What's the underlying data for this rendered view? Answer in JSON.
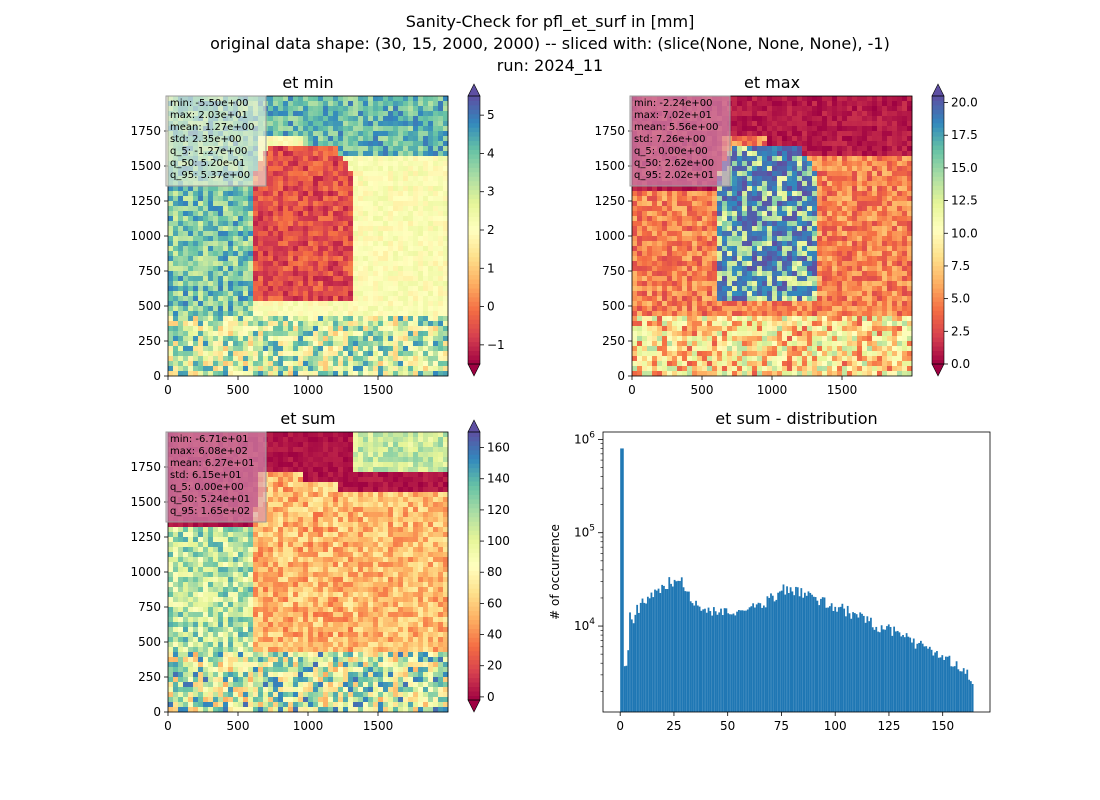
{
  "figure": {
    "suptitle_lines": [
      "Sanity-Check for pfl_et_surf in [mm]",
      "original data shape: (30, 15, 2000, 2000) -- sliced with: (slice(None, None, None), -1)",
      "run: 2024_11"
    ]
  },
  "colormap": "Spectral",
  "colormap_stops": [
    "#9e0142",
    "#d53e4f",
    "#f46d43",
    "#fdae61",
    "#fee08b",
    "#ffffbf",
    "#e6f598",
    "#abdda4",
    "#66c2a5",
    "#3288bd",
    "#5e4fa2"
  ],
  "chart_data": [
    {
      "type": "heatmap",
      "title": "et min",
      "xlim": [
        0,
        2000
      ],
      "ylim": [
        0,
        2000
      ],
      "xticks": [
        "0",
        "500",
        "1000",
        "1500"
      ],
      "yticks": [
        "0",
        "250",
        "500",
        "750",
        "1000",
        "1250",
        "1500",
        "1750"
      ],
      "colorbar": {
        "range": [
          -1.5,
          5.5
        ],
        "ticks": [
          "−1",
          "0",
          "1",
          "2",
          "3",
          "4",
          "5"
        ],
        "extend": "both"
      },
      "stats": [
        "min: -5.50e+00",
        "max: 2.03e+01",
        "mean: 1.27e+00",
        "std: 2.35e+00",
        "q_5: -1.27e+00",
        "q_50: 5.20e-01",
        "q_95: 5.37e+00"
      ],
      "stats_box_color": "#f5f5dc"
    },
    {
      "type": "heatmap",
      "title": "et max",
      "xlim": [
        0,
        2000
      ],
      "ylim": [
        0,
        2000
      ],
      "xticks": [
        "0",
        "500",
        "1000",
        "1500"
      ],
      "yticks": [
        "0",
        "250",
        "500",
        "750",
        "1000",
        "1250",
        "1500",
        "1750"
      ],
      "colorbar": {
        "range": [
          0,
          20.5
        ],
        "ticks": [
          "0.0",
          "2.5",
          "5.0",
          "7.5",
          "10.0",
          "12.5",
          "15.0",
          "17.5",
          "20.0"
        ],
        "extend": "both"
      },
      "stats": [
        "min: -2.24e+00",
        "max: 7.02e+01",
        "mean: 5.56e+00",
        "std: 7.26e+00",
        "q_5: 0.00e+00",
        "q_50: 2.62e+00",
        "q_95: 2.02e+01"
      ],
      "stats_box_color": "#d8a0c0"
    },
    {
      "type": "heatmap",
      "title": "et sum",
      "xlim": [
        0,
        2000
      ],
      "ylim": [
        0,
        2000
      ],
      "xticks": [
        "0",
        "500",
        "1000",
        "1500"
      ],
      "yticks": [
        "0",
        "250",
        "500",
        "750",
        "1000",
        "1250",
        "1500",
        "1750"
      ],
      "colorbar": {
        "range": [
          -2,
          170
        ],
        "ticks": [
          "0",
          "20",
          "40",
          "60",
          "80",
          "100",
          "120",
          "140",
          "160"
        ],
        "extend": "both"
      },
      "stats": [
        "min: -6.71e+01",
        "max: 6.08e+02",
        "mean: 6.27e+01",
        "std: 6.15e+01",
        "q_5: 0.00e+00",
        "q_50: 5.24e+01",
        "q_95: 1.65e+02"
      ],
      "stats_box_color": "#d8a0c0"
    },
    {
      "type": "bar",
      "title": "et sum - distribution",
      "ylabel": "# of occurrence",
      "yscale": "log",
      "xlim": [
        -8,
        172
      ],
      "ylim": [
        1200,
        1200000
      ],
      "xticks": [
        0,
        25,
        50,
        75,
        100,
        125,
        150
      ],
      "ytick_labels": [
        "10^4",
        "10^5",
        "10^6"
      ],
      "color": "#1f77b4",
      "bin_width": 0.83,
      "x": [
        0,
        1,
        2,
        3,
        4,
        5,
        6,
        7,
        8,
        10,
        12,
        14,
        16,
        18,
        20,
        22,
        24,
        26,
        28,
        30,
        32,
        35,
        40,
        45,
        50,
        55,
        60,
        65,
        70,
        75,
        78,
        80,
        82,
        85,
        90,
        95,
        100,
        105,
        110,
        115,
        120,
        125,
        130,
        135,
        140,
        145,
        150,
        155,
        160,
        164
      ],
      "values": [
        800000,
        3300,
        3800,
        4500,
        12500,
        13000,
        11500,
        14000,
        15500,
        18000,
        20000,
        21000,
        23000,
        25000,
        27000,
        29000,
        31000,
        32000,
        30000,
        26000,
        21000,
        18000,
        15500,
        14500,
        14000,
        13500,
        15000,
        17000,
        20000,
        24000,
        26000,
        25000,
        23500,
        22000,
        20000,
        18500,
        16000,
        14500,
        13000,
        11500,
        10000,
        9000,
        8000,
        7000,
        6000,
        5200,
        4500,
        4000,
        3500,
        2700
      ]
    }
  ]
}
